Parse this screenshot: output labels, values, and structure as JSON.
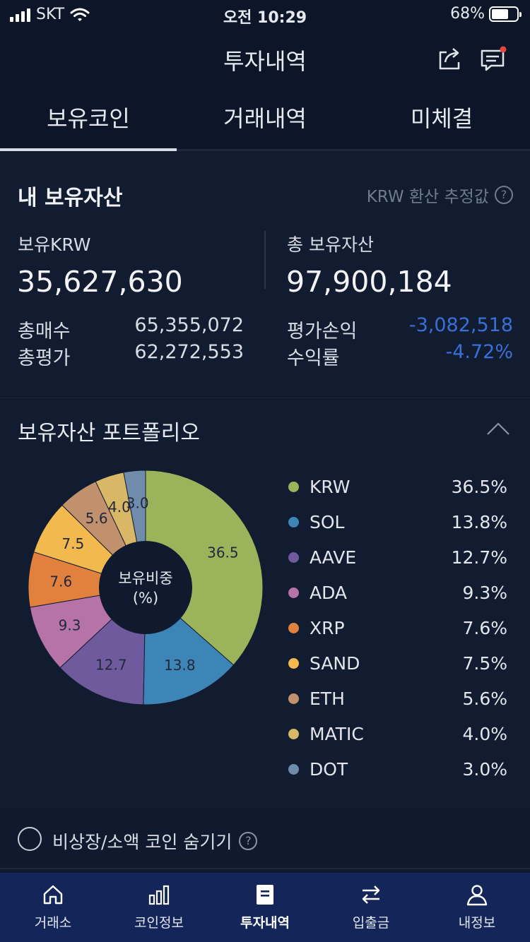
{
  "status_bar": {
    "carrier": "SKT",
    "time": "오전 10:29",
    "battery": "68%",
    "battery_level": 0.68
  },
  "header": {
    "title": "투자내역",
    "icons": [
      "share-icon",
      "chat-icon"
    ]
  },
  "tabs": [
    {
      "label": "보유코인",
      "active": true
    },
    {
      "label": "거래내역",
      "active": false
    },
    {
      "label": "미체결",
      "active": false
    }
  ],
  "assets": {
    "heading": "내 보유자산",
    "estimate_note": "KRW 환산 추정값",
    "krw_label": "보유KRW",
    "krw_value": "35,627,630",
    "total_label": "총 보유자산",
    "total_value": "97,900,184",
    "total_buy_label": "총매수",
    "total_buy_value": "65,355,072",
    "total_eval_label": "총평가",
    "total_eval_value": "62,272,553",
    "pnl_label": "평가손익",
    "pnl_value": "-3,082,518",
    "rate_label": "수익률",
    "rate_value": "-4.72%"
  },
  "portfolio": {
    "heading": "보유자산 포트폴리오",
    "center_label_1": "보유비중",
    "center_label_2": "(%)"
  },
  "chart_data": {
    "type": "pie",
    "categories": [
      "KRW",
      "SOL",
      "AAVE",
      "ADA",
      "XRP",
      "SAND",
      "ETH",
      "MATIC",
      "DOT"
    ],
    "values": [
      36.5,
      13.8,
      12.7,
      9.3,
      7.6,
      7.5,
      5.6,
      4.0,
      3.0
    ],
    "labels": [
      "36.5%",
      "13.8%",
      "12.7%",
      "9.3%",
      "7.6%",
      "7.5%",
      "5.6%",
      "4.0%",
      "3.0%"
    ],
    "slice_labels": [
      "36.5",
      "13.8",
      "12.7",
      "9.3",
      "7.6",
      "7.5",
      "5.6",
      "4.0",
      "3.0"
    ],
    "colors": [
      "#9bb35a",
      "#3d85b6",
      "#6e5a9c",
      "#b573a8",
      "#e2803d",
      "#f2b94e",
      "#c0916c",
      "#d8b866",
      "#6f8cab"
    ]
  },
  "hide_option": {
    "label": "비상장/소액 코인 숨기기"
  },
  "bottom_nav": [
    {
      "label": "거래소",
      "icon": "home-icon",
      "active": false
    },
    {
      "label": "코인정보",
      "icon": "bar-chart-icon",
      "active": false
    },
    {
      "label": "투자내역",
      "icon": "document-icon",
      "active": true
    },
    {
      "label": "입출금",
      "icon": "transfer-icon",
      "active": false
    },
    {
      "label": "내정보",
      "icon": "person-icon",
      "active": false
    }
  ]
}
